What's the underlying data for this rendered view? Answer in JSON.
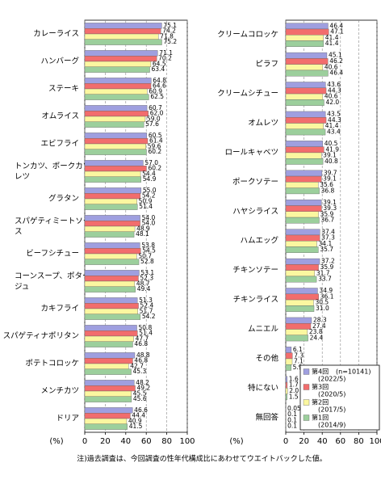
{
  "chart_data": [
    {
      "type": "bar",
      "orientation": "horizontal",
      "unit": "(%)",
      "categories": [
        "カレーライス",
        "ハンバーグ",
        "ステーキ",
        "オムライス",
        "エビフライ",
        "トンカツ、ポークカツレツ",
        "グラタン",
        "スパゲティミートソース",
        "ビーフシチュー",
        "コーンスープ、ポタージュ",
        "カキフライ",
        "スパゲティナポリタン",
        "ポテトコロッケ",
        "メンチカツ",
        "ドリア"
      ],
      "series": [
        {
          "name": "第4回",
          "color": "#9f9fdf",
          "values": [
            75.1,
            71.1,
            64.8,
            60.7,
            60.5,
            57.0,
            55.0,
            54.0,
            53.8,
            53.1,
            51.3,
            50.8,
            48.8,
            48.2,
            46.6
          ],
          "value_labels": [
            "75.1",
            "71.1",
            "64.8",
            "60.7",
            "60.5",
            "57.0",
            "55.0",
            "54.0",
            "53.8",
            "53.1",
            "51.3",
            "50.8",
            "48.8",
            "48.2",
            "46.6"
          ]
        },
        {
          "name": "第3回",
          "color": "#f26d6d",
          "values": [
            74.2,
            70.2,
            64.6,
            62.0,
            61.4,
            60.2,
            54.2,
            54.0,
            54.5,
            52.3,
            52.4,
            51.4,
            46.8,
            49.2,
            44.4
          ],
          "value_labels": [
            "74.2",
            "70.2",
            "64.6",
            "62.0",
            "61.4",
            "60.2",
            "54.2",
            "54.0",
            "54.5",
            "52.3",
            "52.4",
            "51.4",
            "46.8",
            "49.2",
            "44.4"
          ]
        },
        {
          "name": "第2回",
          "color": "#fbf7a0",
          "values": [
            71.8,
            64.5,
            60.9,
            59.0,
            59.6,
            54.4,
            50.9,
            48.9,
            50.7,
            48.7,
            51.7,
            47.7,
            42.7,
            45.5,
            40.9
          ],
          "value_labels": [
            "71.8",
            "64.5",
            "60.9",
            "59.0",
            "59.6",
            "54.4",
            "50.9",
            "48.9",
            "50.7",
            "48.7",
            "51.7",
            "47.7",
            "42.7",
            "45.5",
            "40.9"
          ]
        },
        {
          "name": "第1回",
          "color": "#9ccf9c",
          "values": [
            75.2,
            63.4,
            62.5,
            57.6,
            60.2,
            54.9,
            51.4,
            48.1,
            52.8,
            49.4,
            54.2,
            46.8,
            45.3,
            45.6,
            41.5
          ],
          "value_labels": [
            "75.2",
            "63.4",
            "62.5",
            "57.6",
            "60.2",
            "54.9",
            "51.4",
            "48.1",
            "52.8",
            "49.4",
            "54.2",
            "46.8",
            "45.3",
            "45.6",
            "41.5"
          ]
        }
      ],
      "xlim": [
        0,
        100
      ],
      "xticks": [
        0,
        20,
        40,
        60,
        80,
        100
      ],
      "grid": true
    },
    {
      "type": "bar",
      "orientation": "horizontal",
      "unit": "(%)",
      "categories": [
        "クリームコロッケ",
        "ピラフ",
        "クリームシチュー",
        "オムレツ",
        "ロールキャベツ",
        "ポークソテー",
        "ハヤシライス",
        "ハムエッグ",
        "チキンソテー",
        "チキンライス",
        "ムニエル",
        "その他",
        "特にない",
        "無回答"
      ],
      "series": [
        {
          "name": "第4回",
          "sublabel": "(2022/5)",
          "note": "(n=10141)",
          "color": "#9f9fdf",
          "values": [
            46.4,
            45.1,
            43.6,
            43.5,
            40.5,
            39.7,
            39.1,
            37.4,
            37.2,
            34.9,
            28.3,
            6.1,
            1.6,
            0.05
          ],
          "value_labels": [
            "46.4",
            "45.1",
            "43.6",
            "43.5",
            "40.5",
            "39.7",
            "39.1",
            "37.4",
            "37.2",
            "34.9",
            "28.3",
            "6.1",
            "1.6",
            "0.05"
          ]
        },
        {
          "name": "第3回",
          "sublabel": "(2020/5)",
          "color": "#f26d6d",
          "values": [
            47.1,
            46.2,
            44.3,
            44.3,
            41.9,
            39.1,
            39.3,
            37.3,
            35.9,
            36.1,
            27.4,
            7.3,
            1.7,
            0.1
          ],
          "value_labels": [
            "47.1",
            "46.2",
            "44.3",
            "44.3",
            "41.9",
            "39.1",
            "39.3",
            "37.3",
            "35.9",
            "36.1",
            "27.4",
            "7.3",
            "1.7",
            "0.1"
          ]
        },
        {
          "name": "第2回",
          "sublabel": "(2017/5)",
          "color": "#fbf7a0",
          "values": [
            41.4,
            40.6,
            40.6,
            41.4,
            39.1,
            35.6,
            35.9,
            34.1,
            31.7,
            30.5,
            23.8,
            7.1,
            2.0,
            0.1
          ],
          "value_labels": [
            "41.4",
            "40.6",
            "40.6",
            "41.4",
            "39.1",
            "35.6",
            "35.9",
            "34.1",
            "31.7",
            "30.5",
            "23.8",
            "7.1",
            "2.0",
            "0.1"
          ]
        },
        {
          "name": "第1回",
          "sublabel": "(2014/9)",
          "color": "#9ccf9c",
          "values": [
            41.4,
            46.4,
            42.0,
            43.4,
            40.8,
            36.8,
            36.7,
            35.7,
            33.7,
            31.0,
            24.4,
            5.9,
            1.5,
            0.1
          ],
          "value_labels": [
            "41.4",
            "46.4",
            "42.0",
            "43.4",
            "40.8",
            "36.8",
            "36.7",
            "35.7",
            "33.7",
            "31.0",
            "24.4",
            "5.9",
            "1.5",
            "0.1"
          ]
        }
      ],
      "xlim": [
        0,
        100
      ],
      "xticks": [
        0,
        20,
        40,
        60,
        80,
        100
      ],
      "grid": true,
      "legend": "bottom-right"
    }
  ],
  "note": "注)過去調査は、今回調査の性年代構成比にあわせてウエイトバックした値。"
}
